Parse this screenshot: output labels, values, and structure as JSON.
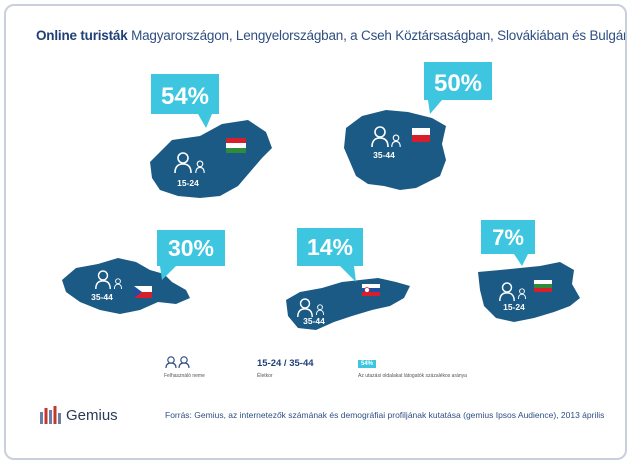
{
  "title": {
    "bold": "Online turisták",
    "rest": " Magyarországon, Lengyelországban, a Cseh Köztársaságban, Slovákiában és Bulgáriában"
  },
  "chart_data": {
    "type": "bar",
    "categories": [
      "Magyarország",
      "Lengyelország",
      "Cseh Köztársaság",
      "Szlovákia",
      "Bulgária"
    ],
    "values": [
      54,
      50,
      30,
      14,
      7
    ],
    "value_labels": [
      "54%",
      "50%",
      "30%",
      "14%",
      "7%"
    ],
    "age_groups": [
      "15-24",
      "35-44",
      "35-44",
      "35-44",
      "15-24"
    ],
    "unit": "%"
  },
  "legend": {
    "users_label": "Felhasználó neme",
    "age_value": "15-24 / 35-44",
    "age_label": "Életkor",
    "pct_badge": "54%",
    "pct_label": "Az utazási oldalakat látogatók százalékos aránya"
  },
  "footer": {
    "logo_text": "Gemius",
    "source": "Forrás: Gemius, az internetezők számának és demográfiai profiljának kutatása (gemius Ipsos Audience), 2013 április"
  },
  "colors": {
    "map": "#1b5a84",
    "map_dark": "#143f60",
    "callout": "#3ec6e0",
    "title": "#2f4f82",
    "flag_red": "#d71f2b",
    "flag_green": "#2e8b3a",
    "flag_blue": "#1e4fa0"
  }
}
